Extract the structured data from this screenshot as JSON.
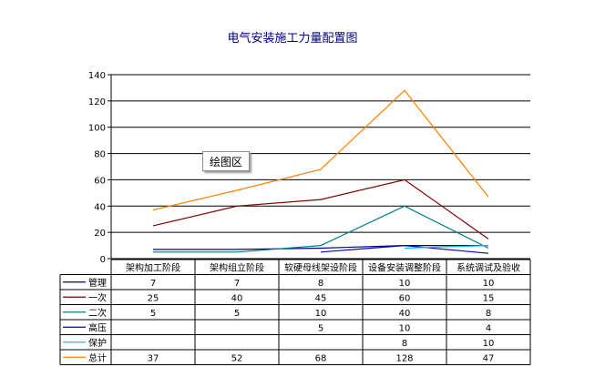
{
  "chart_data": {
    "type": "line",
    "title": "电气安装施工力量配置图",
    "categories": [
      "架构加工阶段",
      "架构组立阶段",
      "软硬母线架设阶段",
      "设备安装调整阶段",
      "系统调试及验收"
    ],
    "ylim": [
      0,
      140
    ],
    "yticks": [
      0,
      20,
      40,
      60,
      80,
      100,
      120,
      140
    ],
    "grid": true,
    "legend": "data-table",
    "series": [
      {
        "name": "管理",
        "color": "#00008B",
        "values": [
          7,
          7,
          8,
          10,
          10
        ],
        "labels": [
          "7",
          "7",
          "8",
          "10",
          "10"
        ]
      },
      {
        "name": "一次",
        "color": "#800000",
        "values": [
          25,
          40,
          45,
          60,
          15
        ],
        "labels": [
          "25",
          "40",
          "45",
          "60",
          "15"
        ]
      },
      {
        "name": "二次",
        "color": "#008080",
        "values": [
          5,
          5,
          10,
          40,
          8
        ],
        "labels": [
          "5",
          "5",
          "10",
          "40",
          "8"
        ]
      },
      {
        "name": "高压",
        "color": "#0000CC",
        "values": [
          null,
          null,
          5,
          10,
          4
        ],
        "labels": [
          "",
          "",
          "5",
          "10",
          "4"
        ]
      },
      {
        "name": "保护",
        "color": "#00C8E6",
        "values": [
          null,
          null,
          null,
          8,
          10
        ],
        "labels": [
          "",
          "",
          "",
          "8",
          "10"
        ]
      },
      {
        "name": "总计",
        "color": "#FF7F00",
        "values": [
          37,
          52,
          68,
          128,
          47
        ],
        "labels": [
          "37",
          "52",
          "68",
          "128",
          "47"
        ]
      }
    ]
  },
  "tooltip": {
    "label": "绘图区"
  }
}
